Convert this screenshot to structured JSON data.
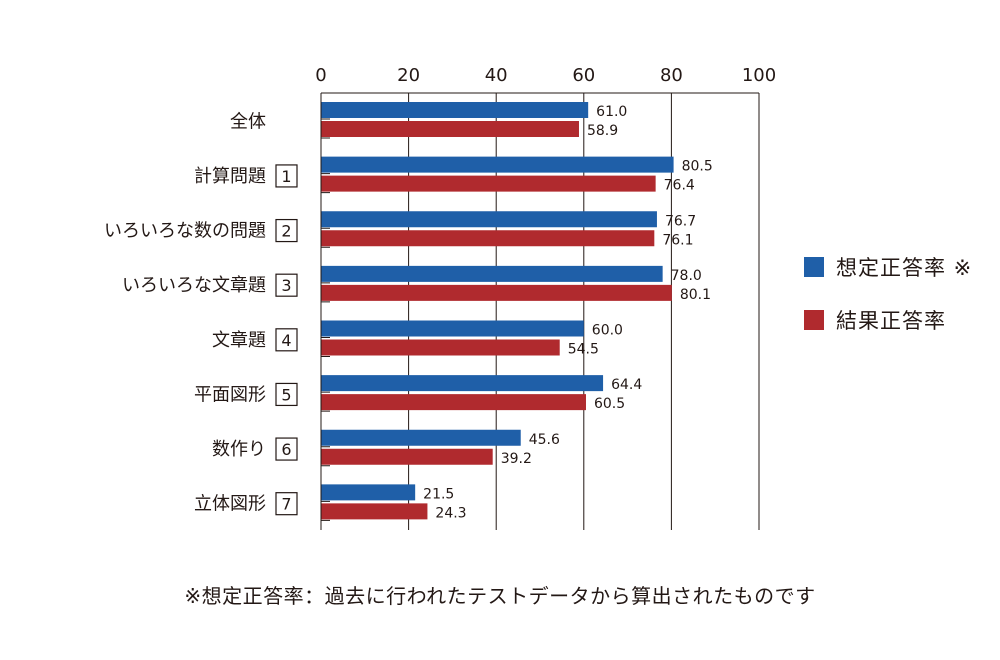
{
  "chart_data": {
    "type": "bar",
    "orientation": "horizontal",
    "xlim": [
      0,
      100
    ],
    "xticks": [
      0,
      20,
      40,
      60,
      80,
      100
    ],
    "grid": true,
    "categories": [
      {
        "label": "全体",
        "box": ""
      },
      {
        "label": "計算問題",
        "box": "1"
      },
      {
        "label": "いろいろな数の問題",
        "box": "2"
      },
      {
        "label": "いろいろな文章題",
        "box": "3"
      },
      {
        "label": "文章題",
        "box": "4"
      },
      {
        "label": "平面図形",
        "box": "5"
      },
      {
        "label": "数作り",
        "box": "6"
      },
      {
        "label": "立体図形",
        "box": "7"
      }
    ],
    "series": [
      {
        "name": "想定正答率 ※",
        "color": "#1f5fa8",
        "values": [
          61.0,
          80.5,
          76.7,
          78.0,
          60.0,
          64.4,
          45.6,
          21.5
        ]
      },
      {
        "name": "結果正答率",
        "color": "#b02a2e",
        "values": [
          58.9,
          76.4,
          76.1,
          80.1,
          54.5,
          60.5,
          39.2,
          24.3
        ]
      }
    ],
    "legend_position": "right"
  },
  "footnote": "※想定正答率：過去に行われたテストデータから算出されたものです"
}
